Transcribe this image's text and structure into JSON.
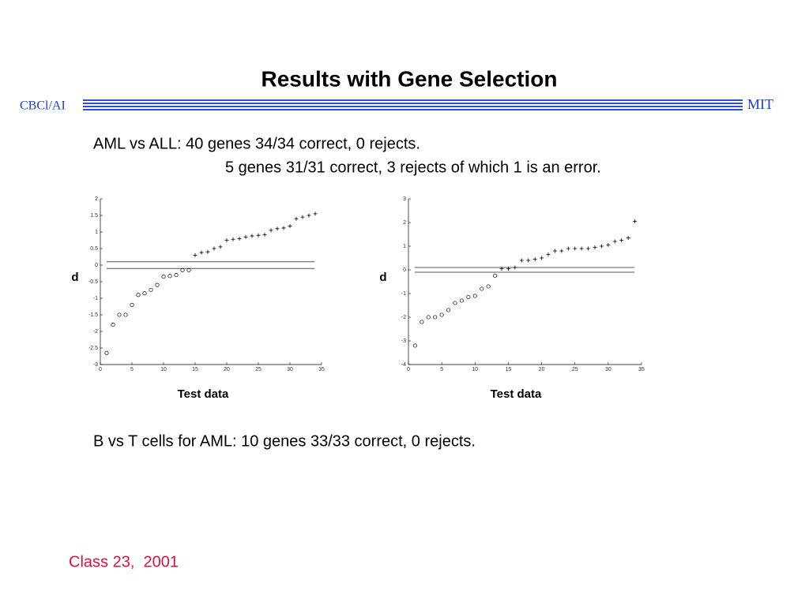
{
  "header": {
    "title": "Results with Gene Selection",
    "left": "CBCl/AI",
    "right": "MIT"
  },
  "lines": [
    "AML vs ALL: 40 genes 34/34 correct, 0 rejects.",
    "5 genes 31/31 correct, 3 rejects of which 1 is an error.",
    "B vs T cells for AML: 10 genes 33/33 correct, 0 rejects."
  ],
  "footer": "Class 23,  2001",
  "chart_data": [
    {
      "type": "scatter",
      "xlabel": "Test data",
      "ylabel": "d",
      "xlim": [
        0,
        35
      ],
      "xticks": [
        0,
        5,
        10,
        15,
        20,
        25,
        30,
        35
      ],
      "ylim": [
        -3,
        2
      ],
      "yticks": [
        -3,
        -2.5,
        -2,
        -1.5,
        -1,
        -0.5,
        0,
        0.5,
        1,
        1.5,
        2
      ],
      "hlines": [
        0.1,
        -0.1
      ],
      "series": [
        {
          "marker": "o",
          "color": "#000000",
          "x": [
            1,
            2,
            3,
            4,
            5,
            6,
            7,
            8,
            9,
            10,
            11,
            12,
            13,
            14
          ],
          "values": [
            -2.65,
            -1.8,
            -1.5,
            -1.5,
            -1.2,
            -0.9,
            -0.85,
            -0.75,
            -0.6,
            -0.35,
            -0.33,
            -0.3,
            -0.15,
            -0.15
          ]
        },
        {
          "marker": "+",
          "color": "#000000",
          "x": [
            15,
            16,
            17,
            18,
            19,
            20,
            21,
            22,
            23,
            24,
            25,
            26,
            27,
            28,
            29,
            30,
            31,
            32,
            33,
            34
          ],
          "values": [
            0.3,
            0.38,
            0.4,
            0.5,
            0.55,
            0.75,
            0.78,
            0.8,
            0.85,
            0.88,
            0.9,
            0.92,
            1.05,
            1.1,
            1.12,
            1.18,
            1.4,
            1.45,
            1.5,
            1.55
          ]
        }
      ]
    },
    {
      "type": "scatter",
      "xlabel": "Test data",
      "ylabel": "d",
      "xlim": [
        0,
        35
      ],
      "xticks": [
        0,
        5,
        10,
        15,
        20,
        25,
        30,
        35
      ],
      "ylim": [
        -4,
        3
      ],
      "yticks": [
        -4,
        -3,
        -2,
        -1,
        0,
        1,
        2,
        3
      ],
      "hlines": [
        0.1,
        -0.1
      ],
      "series": [
        {
          "marker": "o",
          "color": "#000000",
          "x": [
            1,
            2,
            3,
            4,
            5,
            6,
            7,
            8,
            9,
            10,
            11,
            12,
            13
          ],
          "values": [
            -3.2,
            -2.2,
            -2.0,
            -2.0,
            -1.9,
            -1.7,
            -1.4,
            -1.3,
            -1.15,
            -1.1,
            -0.8,
            -0.7,
            -0.25
          ]
        },
        {
          "marker": "+",
          "color": "#000000",
          "x": [
            14,
            15,
            16,
            17,
            18,
            19,
            20,
            21,
            22,
            23,
            24,
            25,
            26,
            27,
            28,
            29,
            30,
            31,
            32,
            33,
            34
          ],
          "values": [
            0.05,
            0.05,
            0.1,
            0.4,
            0.4,
            0.45,
            0.5,
            0.65,
            0.8,
            0.8,
            0.9,
            0.9,
            0.9,
            0.9,
            0.95,
            1.0,
            1.05,
            1.2,
            1.25,
            1.35,
            2.05
          ]
        }
      ]
    }
  ]
}
